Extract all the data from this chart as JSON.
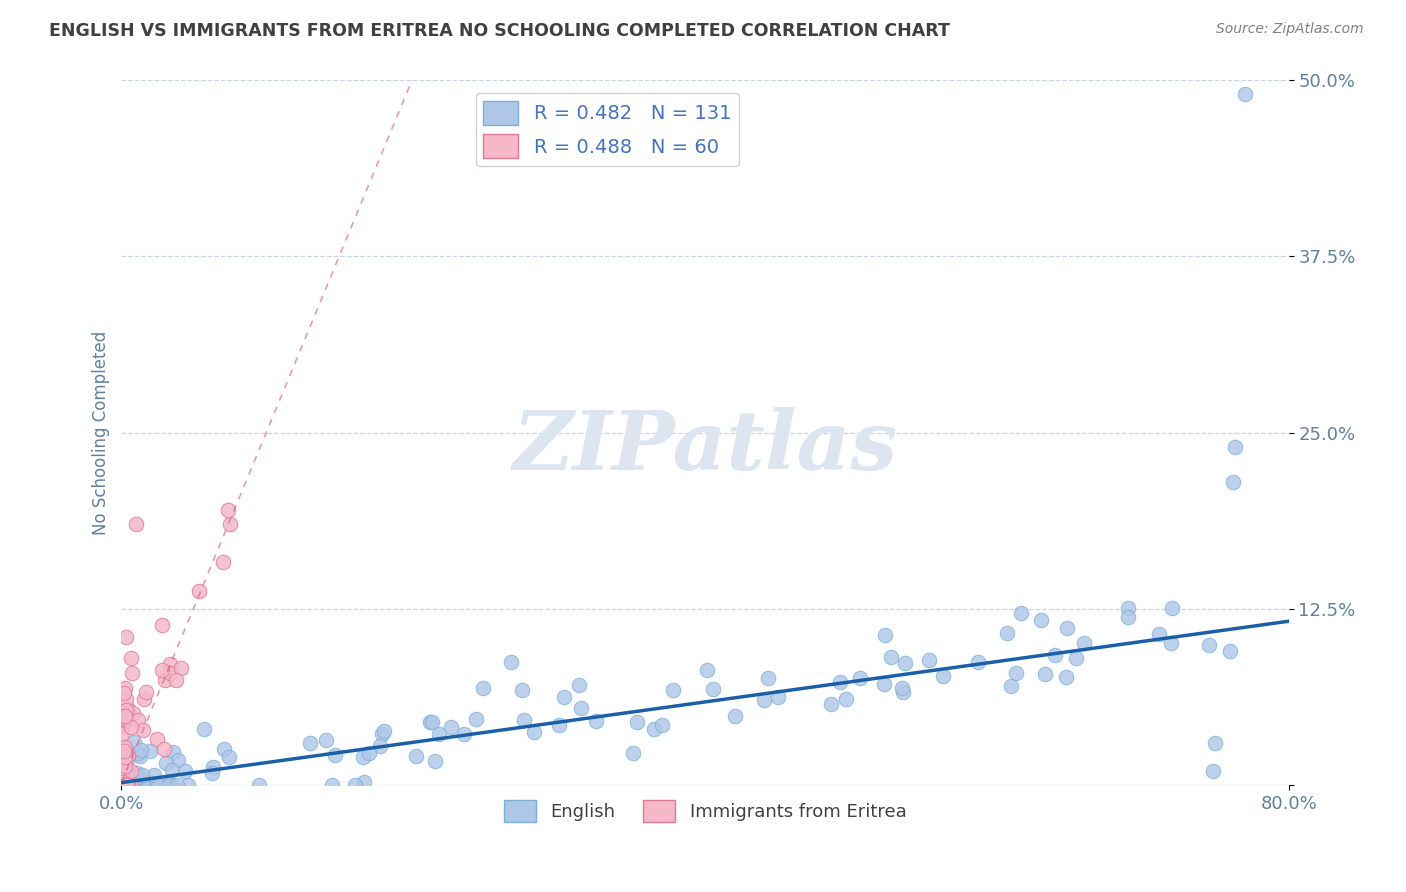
{
  "title": "ENGLISH VS IMMIGRANTS FROM ERITREA NO SCHOOLING COMPLETED CORRELATION CHART",
  "source": "Source: ZipAtlas.com",
  "ylabel": "No Schooling Completed",
  "xlim": [
    0.0,
    0.8
  ],
  "ylim": [
    0.0,
    0.5
  ],
  "xticks": [
    0.0,
    0.8
  ],
  "xticklabels": [
    "0.0%",
    "80.0%"
  ],
  "yticks": [
    0.0,
    0.125,
    0.25,
    0.375,
    0.5
  ],
  "yticklabels": [
    "",
    "12.5%",
    "25.0%",
    "37.5%",
    "50.0%"
  ],
  "watermark": "ZIPatlas",
  "eng_color": "#aec6e8",
  "eng_edge_color": "#7bafd4",
  "eng_trend_color": "#1a5fa8",
  "eri_color": "#f4b8c8",
  "eri_edge_color": "#e07898",
  "eri_trend_color": "#d45878",
  "background_color": "#ffffff",
  "grid_color": "#c8d4e4",
  "grid_style": "--",
  "title_color": "#404040",
  "ylabel_color": "#6080a0",
  "tick_label_color": "#6080a0",
  "source_color": "#808080",
  "watermark_color": "#dde6f0",
  "eng_R": 0.482,
  "eng_N": 131,
  "eri_R": 0.488,
  "eri_N": 60,
  "eng_trend_intercept": 0.002,
  "eng_trend_slope": 0.143,
  "eri_trend_intercept": 0.002,
  "eri_trend_slope": 2.5
}
